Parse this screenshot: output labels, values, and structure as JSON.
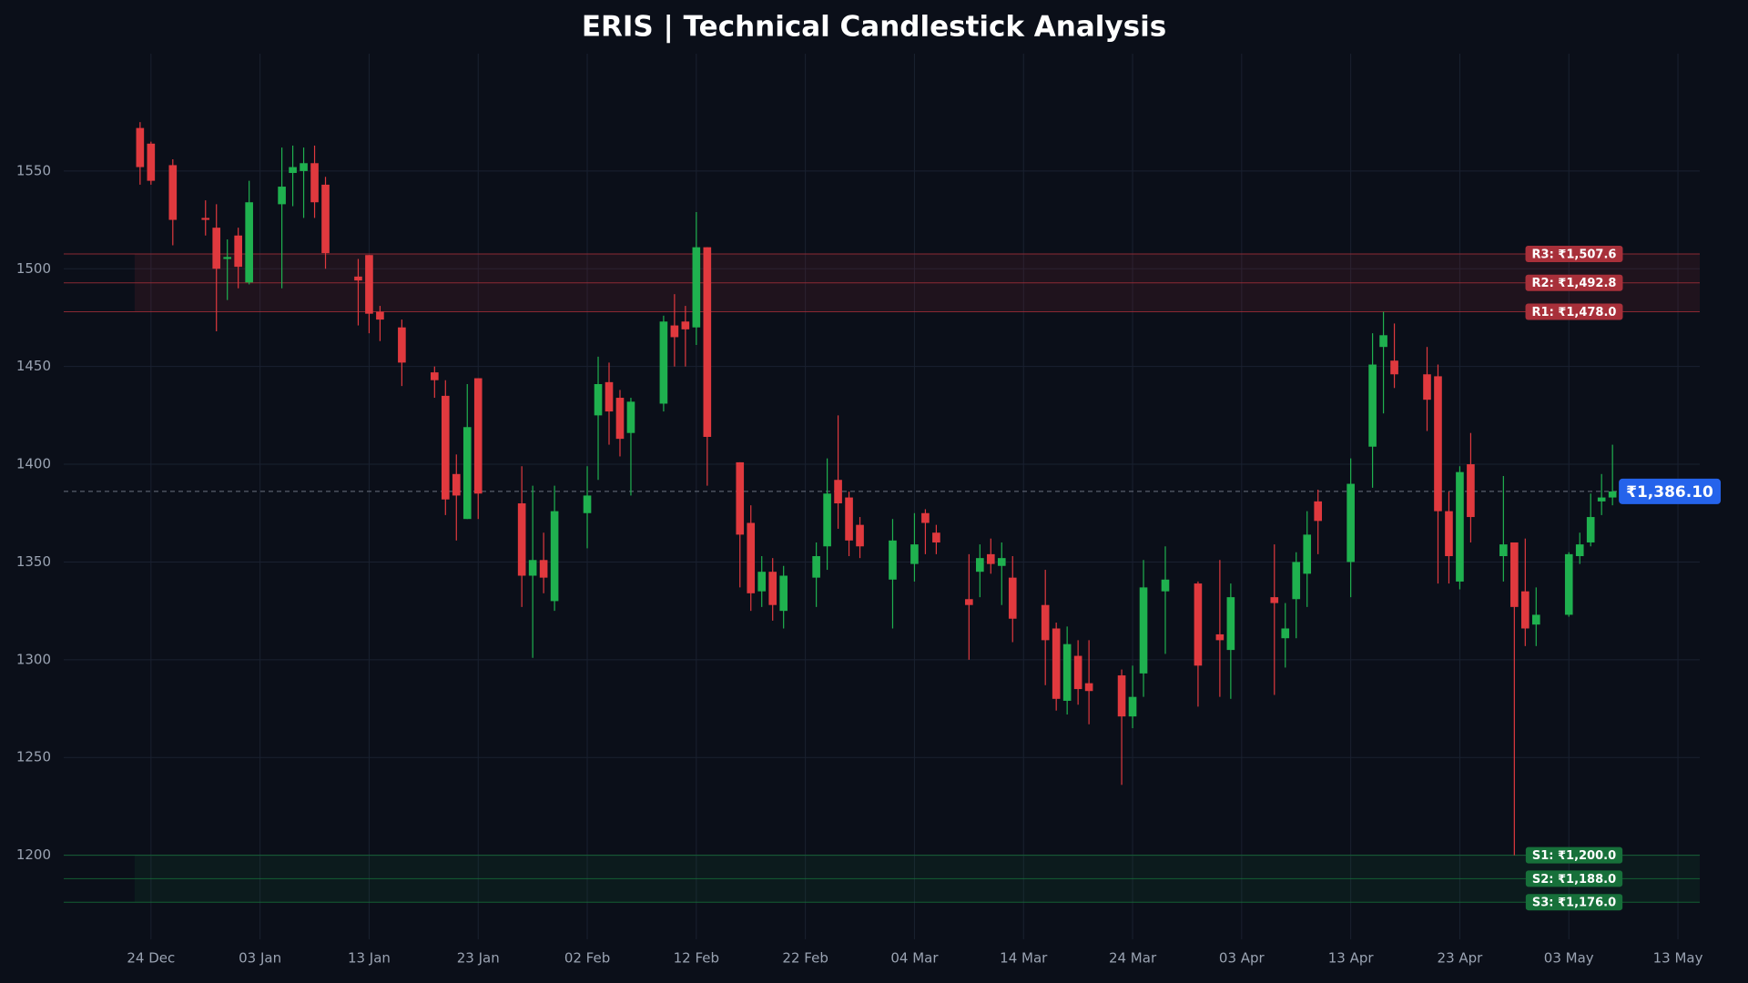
{
  "chart_data": {
    "type": "candlestick",
    "title": "ERIS | Technical Candlestick Analysis",
    "x": [
      "23 Dec",
      "24 Dec",
      "26 Dec",
      "29 Dec",
      "30 Dec",
      "31 Dec",
      "01 Jan",
      "02 Jan",
      "05 Jan",
      "06 Jan",
      "07 Jan",
      "08 Jan",
      "09 Jan",
      "12 Jan",
      "13 Jan",
      "14 Jan",
      "16 Jan",
      "19 Jan",
      "20 Jan",
      "21 Jan",
      "22 Jan",
      "23 Jan",
      "27 Jan",
      "28 Jan",
      "29 Jan",
      "30 Jan",
      "02 Feb",
      "03 Feb",
      "04 Feb",
      "05 Feb",
      "06 Feb",
      "09 Feb",
      "10 Feb",
      "11 Feb",
      "12 Feb",
      "13 Feb",
      "16 Feb",
      "17 Feb",
      "18 Feb",
      "19 Feb",
      "20 Feb",
      "23 Feb",
      "24 Feb",
      "25 Feb",
      "26 Feb",
      "27 Feb",
      "02 Mar",
      "04 Mar",
      "05 Mar",
      "06 Mar",
      "09 Mar",
      "10 Mar",
      "11 Mar",
      "12 Mar",
      "13 Mar",
      "16 Mar",
      "17 Mar",
      "18 Mar",
      "19 Mar",
      "20 Mar",
      "23 Mar",
      "24 Mar",
      "25 Mar",
      "27 Mar",
      "30 Mar",
      "01 Apr",
      "02 Apr",
      "06 Apr",
      "07 Apr",
      "08 Apr",
      "09 Apr",
      "10 Apr",
      "13 Apr",
      "15 Apr",
      "16 Apr",
      "17 Apr",
      "20 Apr",
      "21 Apr",
      "22 Apr",
      "23 Apr",
      "24 Apr",
      "27 Apr",
      "28 Apr",
      "29 Apr",
      "30 Apr",
      "03 May",
      "04 May",
      "05 May",
      "06 May",
      "07 May"
    ],
    "open": [
      1572,
      1564,
      1553,
      1526,
      1521,
      1505,
      1517,
      1493,
      1533,
      1549,
      1550,
      1554,
      1543,
      1496,
      1507,
      1478,
      1470,
      1447,
      1435,
      1395,
      1372,
      1444,
      1380,
      1343,
      1351,
      1330,
      1375,
      1425,
      1442,
      1434,
      1416,
      1431,
      1471,
      1473,
      1470,
      1511,
      1401,
      1370,
      1335,
      1345,
      1325,
      1342,
      1358,
      1392,
      1383,
      1369,
      1341,
      1349,
      1375,
      1365,
      1331,
      1345,
      1354,
      1348,
      1342,
      1328,
      1316,
      1279,
      1302,
      1288,
      1292,
      1271,
      1293,
      1335,
      1339,
      1313,
      1305,
      1332,
      1311,
      1331,
      1344,
      1381,
      1350,
      1409,
      1460,
      1453,
      1446,
      1445,
      1376,
      1340,
      1400,
      1353,
      1360,
      1335,
      1318,
      1323,
      1353,
      1360,
      1381,
      1383
    ],
    "high": [
      1575,
      1565,
      1556,
      1535,
      1533,
      1515,
      1521,
      1545,
      1562,
      1563,
      1562,
      1563,
      1547,
      1505,
      1507,
      1481,
      1474,
      1450,
      1443,
      1405,
      1441,
      1444,
      1399,
      1389,
      1365,
      1389,
      1399,
      1455,
      1452,
      1438,
      1434,
      1476,
      1487,
      1481,
      1529,
      1511,
      1401,
      1379,
      1353,
      1352,
      1348,
      1360,
      1403,
      1425,
      1386,
      1373,
      1372,
      1375,
      1377,
      1369,
      1354,
      1359,
      1362,
      1360,
      1353,
      1346,
      1319,
      1317,
      1310,
      1310,
      1295,
      1297,
      1351,
      1358,
      1340,
      1351,
      1339,
      1359,
      1329,
      1355,
      1376,
      1387,
      1403,
      1467,
      1478,
      1472,
      1460,
      1451,
      1386,
      1399,
      1416,
      1394,
      1360,
      1362,
      1337,
      1355,
      1365,
      1385,
      1395,
      1410
    ],
    "low": [
      1543,
      1543,
      1512,
      1517,
      1468,
      1484,
      1490,
      1492,
      1490,
      1532,
      1526,
      1526,
      1500,
      1471,
      1467,
      1463,
      1440,
      1434,
      1374,
      1361,
      1372,
      1372,
      1327,
      1301,
      1334,
      1325,
      1357,
      1392,
      1410,
      1404,
      1384,
      1427,
      1450,
      1450,
      1461,
      1389,
      1337,
      1325,
      1327,
      1320,
      1316,
      1327,
      1346,
      1367,
      1353,
      1352,
      1316,
      1340,
      1354,
      1354,
      1300,
      1332,
      1344,
      1328,
      1309,
      1287,
      1274,
      1272,
      1277,
      1267,
      1236,
      1265,
      1281,
      1303,
      1276,
      1281,
      1280,
      1282,
      1296,
      1311,
      1327,
      1354,
      1332,
      1388,
      1426,
      1439,
      1417,
      1339,
      1339,
      1336,
      1360,
      1340,
      1200,
      1307,
      1307,
      1322,
      1349,
      1358,
      1374,
      1379
    ],
    "close": [
      1552,
      1545,
      1525,
      1525,
      1500,
      1506,
      1501,
      1534,
      1542,
      1552,
      1554,
      1534,
      1508,
      1494,
      1477,
      1474,
      1452,
      1443,
      1382,
      1384,
      1419,
      1385,
      1343,
      1351,
      1342,
      1376,
      1384,
      1441,
      1427,
      1413,
      1432,
      1473,
      1465,
      1469,
      1511,
      1414,
      1364,
      1334,
      1345,
      1328,
      1343,
      1353,
      1385,
      1380,
      1361,
      1358,
      1361,
      1359,
      1370,
      1360,
      1328,
      1352,
      1349,
      1352,
      1321,
      1310,
      1280,
      1308,
      1285,
      1284,
      1271,
      1281,
      1337,
      1341,
      1297,
      1310,
      1332,
      1329,
      1316,
      1350,
      1364,
      1371,
      1390,
      1451,
      1466,
      1446,
      1433,
      1376,
      1353,
      1396,
      1373,
      1359,
      1327,
      1316,
      1323,
      1354,
      1359,
      1373,
      1383,
      1386.1
    ],
    "up_color": "#1fb14f",
    "down_color": "#e0393e",
    "levels": [
      {
        "label": "R3: ₹1,507.6",
        "value": 1507.6,
        "color": "#a8303a"
      },
      {
        "label": "R2: ₹1,492.8",
        "value": 1492.8,
        "color": "#a8303a"
      },
      {
        "label": "R1: ₹1,478.0",
        "value": 1478.0,
        "color": "#a8303a"
      },
      {
        "label": "S1: ₹1,200.0",
        "value": 1200.0,
        "color": "#17703a"
      },
      {
        "label": "S2: ₹1,188.0",
        "value": 1188.0,
        "color": "#17703a"
      },
      {
        "label": "S3: ₹1,176.0",
        "value": 1176.0,
        "color": "#17703a"
      }
    ],
    "current_price": {
      "label": "₹1,386.10",
      "value": 1386.1,
      "color": "#2563eb"
    },
    "xlim": [
      "16 Dec",
      "15 May"
    ],
    "xticks": [
      "24 Dec",
      "03 Jan",
      "13 Jan",
      "23 Jan",
      "02 Feb",
      "12 Feb",
      "22 Feb",
      "04 Mar",
      "14 Mar",
      "24 Mar",
      "03 Apr",
      "13 Apr",
      "23 Apr",
      "03 May",
      "13 May"
    ],
    "ylim": [
      1157,
      1610
    ],
    "yticks": [
      1200,
      1250,
      1300,
      1350,
      1400,
      1450,
      1500,
      1550
    ],
    "grid": true
  }
}
